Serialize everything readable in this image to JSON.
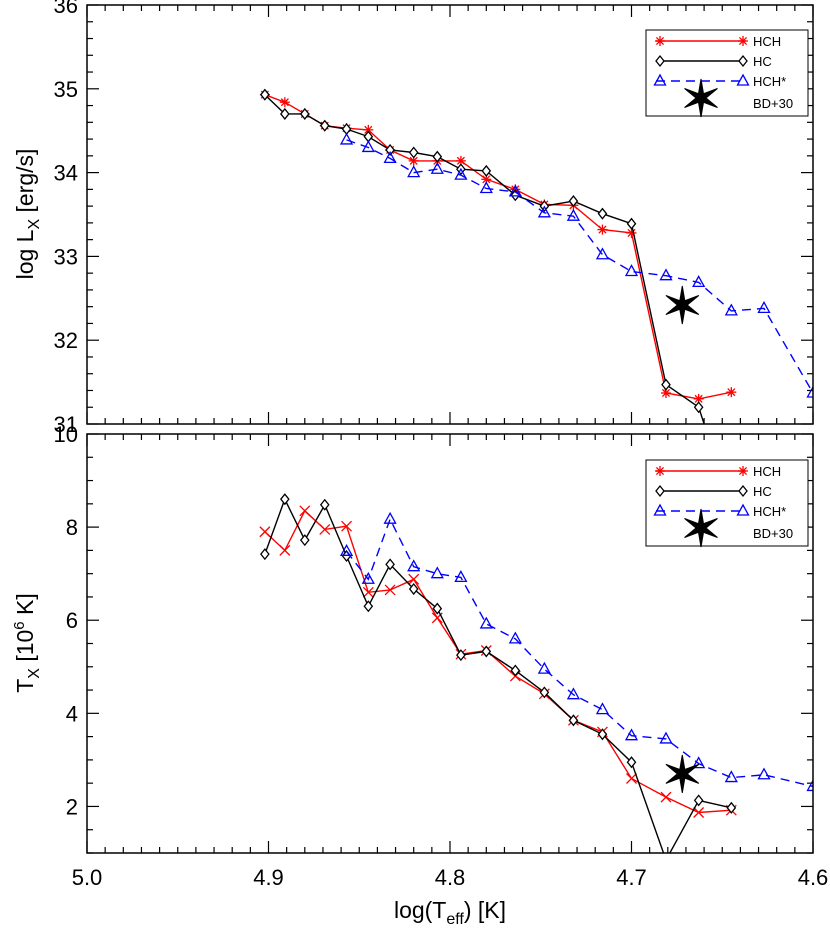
{
  "chart_data": [
    {
      "type": "line",
      "panel": "top",
      "xlabel": "log(Teff) [K]",
      "ylabel_main": "log L",
      "ylabel_sub": "X",
      "ylabel_unit": "[erg/s]",
      "xlim": [
        5.0,
        4.6
      ],
      "ylim": [
        31,
        36
      ],
      "x_ticks": [
        5.0,
        4.9,
        4.8,
        4.7,
        4.6
      ],
      "y_ticks": [
        31,
        32,
        33,
        34,
        35,
        36
      ],
      "y_tick_labels": [
        "31",
        "32",
        "33",
        "34",
        "35",
        "36"
      ],
      "legend_position": "top-right",
      "series": [
        {
          "name": "HCH",
          "color": "#ff0000",
          "dash": false,
          "marker": "asterisk",
          "x": [
            4.902,
            4.891,
            4.88,
            4.869,
            4.857,
            4.845,
            4.833,
            4.82,
            4.807,
            4.794,
            4.78,
            4.764,
            4.748,
            4.732,
            4.716,
            4.7,
            4.681,
            4.663,
            4.645
          ],
          "y": [
            34.93,
            34.84,
            34.7,
            34.56,
            34.53,
            34.51,
            34.27,
            34.14,
            34.14,
            34.14,
            33.92,
            33.8,
            33.62,
            33.61,
            33.32,
            33.28,
            31.37,
            31.3,
            31.38
          ]
        },
        {
          "name": "HC",
          "color": "#000000",
          "dash": false,
          "marker": "diamond",
          "x": [
            4.902,
            4.891,
            4.88,
            4.869,
            4.857,
            4.845,
            4.833,
            4.82,
            4.807,
            4.794,
            4.78,
            4.764,
            4.748,
            4.732,
            4.716,
            4.7,
            4.681,
            4.663,
            4.66
          ],
          "y": [
            34.93,
            34.7,
            34.7,
            34.56,
            34.52,
            34.43,
            34.27,
            34.24,
            34.19,
            34.04,
            34.02,
            33.73,
            33.6,
            33.66,
            33.51,
            33.39,
            31.47,
            31.2,
            31.0
          ],
          "marker_count": 18
        },
        {
          "name": "HCH*",
          "color": "#0000ff",
          "dash": true,
          "marker": "triangle",
          "x": [
            4.857,
            4.845,
            4.833,
            4.82,
            4.807,
            4.794,
            4.78,
            4.764,
            4.748,
            4.732,
            4.716,
            4.7,
            4.681,
            4.663,
            4.645,
            4.627,
            4.6
          ],
          "y": [
            34.39,
            34.3,
            34.17,
            34.0,
            34.04,
            33.97,
            33.81,
            33.77,
            33.52,
            33.48,
            33.02,
            32.82,
            32.77,
            32.69,
            32.35,
            32.38,
            31.37
          ]
        }
      ],
      "points": [
        {
          "name": "BD+30",
          "x": 4.672,
          "y": 32.42,
          "marker": "star",
          "color": "#000000"
        }
      ]
    },
    {
      "type": "line",
      "panel": "bottom",
      "xlabel": "log(Teff) [K]",
      "ylabel_main": "T",
      "ylabel_sub": "X",
      "ylabel_unit": "[10",
      "ylabel_unit_sup": "6",
      "ylabel_unit_end": " K]",
      "xlim": [
        5.0,
        4.6
      ],
      "ylim": [
        1,
        10
      ],
      "x_ticks": [
        5.0,
        4.9,
        4.8,
        4.7,
        4.6
      ],
      "x_tick_labels": [
        "5.0",
        "4.9",
        "4.8",
        "4.7",
        "4.6"
      ],
      "y_ticks": [
        2,
        4,
        6,
        8,
        10
      ],
      "y_tick_labels": [
        "2",
        "4",
        "6",
        "8",
        "10"
      ],
      "legend_position": "top-right",
      "series": [
        {
          "name": "HCH",
          "color": "#ff0000",
          "dash": false,
          "marker": "x",
          "x": [
            4.902,
            4.891,
            4.88,
            4.869,
            4.857,
            4.845,
            4.833,
            4.82,
            4.807,
            4.794,
            4.78,
            4.764,
            4.748,
            4.732,
            4.716,
            4.7,
            4.681,
            4.663,
            4.645
          ],
          "y": [
            7.9,
            7.5,
            8.35,
            7.95,
            8.02,
            6.6,
            6.65,
            6.88,
            6.05,
            5.27,
            5.35,
            4.8,
            4.42,
            3.85,
            3.6,
            2.6,
            2.2,
            1.87,
            1.92
          ]
        },
        {
          "name": "HC",
          "color": "#000000",
          "dash": false,
          "marker": "diamond",
          "x": [
            4.902,
            4.891,
            4.88,
            4.869,
            4.857,
            4.845,
            4.833,
            4.82,
            4.807,
            4.794,
            4.78,
            4.764,
            4.748,
            4.732,
            4.716,
            4.7,
            4.681,
            4.663,
            4.645
          ],
          "y": [
            7.42,
            8.6,
            7.72,
            8.48,
            7.38,
            6.3,
            7.2,
            6.67,
            6.25,
            5.25,
            5.33,
            4.92,
            4.45,
            3.85,
            3.55,
            2.95,
            0.85,
            2.13,
            1.97
          ]
        },
        {
          "name": "HCH*",
          "color": "#0000ff",
          "dash": true,
          "marker": "triangle",
          "x": [
            4.857,
            4.845,
            4.833,
            4.82,
            4.807,
            4.794,
            4.78,
            4.764,
            4.748,
            4.732,
            4.716,
            4.7,
            4.681,
            4.663,
            4.645,
            4.627,
            4.6
          ],
          "y": [
            7.48,
            6.88,
            8.17,
            7.15,
            7.0,
            6.92,
            5.92,
            5.6,
            4.95,
            4.4,
            4.08,
            3.52,
            3.45,
            2.92,
            2.62,
            2.68,
            2.43
          ]
        }
      ],
      "points": [
        {
          "name": "BD+30",
          "x": 4.672,
          "y": 2.7,
          "marker": "star",
          "color": "#000000"
        }
      ]
    }
  ],
  "xlabel_main": "log(T",
  "xlabel_sub": "eff",
  "xlabel_end": ") [K]"
}
